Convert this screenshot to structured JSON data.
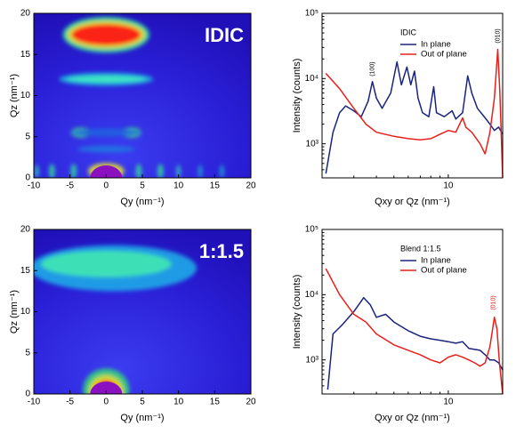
{
  "chart_data": [
    {
      "type": "heatmap",
      "label": "IDIC",
      "xlabel": "Qy (nm⁻¹)",
      "ylabel": "Qz (nm⁻¹)",
      "xlim": [
        -10,
        20
      ],
      "xticks": [
        -10,
        -5,
        0,
        5,
        10,
        15,
        20
      ],
      "ylim": [
        0,
        20
      ],
      "yticks": [
        0,
        5,
        10,
        15,
        20
      ]
    },
    {
      "type": "line",
      "xlabel": "Qxy or Qz (nm⁻¹)",
      "ylabel": "Intensity (counts)",
      "log_x": true,
      "log_y": true,
      "xlim": [
        2,
        20
      ],
      "xticks": [
        10
      ],
      "ylim": [
        300,
        100000
      ],
      "yticks": [
        {
          "value": 1000,
          "label": "10³"
        },
        {
          "value": 10000,
          "label": "10⁴"
        },
        {
          "value": 100000,
          "label": "10⁵"
        }
      ],
      "legend_title": "IDIC",
      "series": [
        {
          "name": "In plane",
          "color": "#1a237e",
          "x": [
            2.1,
            2.3,
            2.5,
            2.7,
            3.0,
            3.3,
            3.6,
            3.8,
            4.0,
            4.3,
            4.8,
            5.2,
            5.5,
            5.9,
            6.2,
            6.5,
            6.8,
            7.2,
            7.8,
            8.3,
            8.6,
            9.5,
            10.5,
            11,
            12,
            12.8,
            13.5,
            14.5,
            16,
            17,
            18,
            19,
            20
          ],
          "values": [
            350,
            1500,
            3000,
            3800,
            3200,
            2600,
            4500,
            9000,
            5000,
            3500,
            6000,
            18000,
            8000,
            15000,
            8000,
            13000,
            5000,
            3000,
            2600,
            7500,
            3000,
            2600,
            3200,
            2400,
            3000,
            11000,
            6000,
            3500,
            2500,
            2000,
            1600,
            1800,
            1400
          ]
        },
        {
          "name": "Out of plane",
          "color": "#e8201c",
          "x": [
            2.1,
            2.5,
            3,
            3.5,
            4,
            5,
            6,
            7,
            8,
            9,
            10,
            11,
            12,
            12.5,
            13.5,
            15,
            16,
            17,
            18,
            18.8,
            19.3,
            20
          ],
          "values": [
            12000,
            7000,
            3500,
            2000,
            1500,
            1300,
            1200,
            1150,
            1200,
            1400,
            1600,
            1500,
            2500,
            1800,
            1500,
            1000,
            700,
            1500,
            5000,
            28000,
            6000,
            300
          ]
        }
      ],
      "annotations": [
        {
          "text": "(100)",
          "x": 3.8,
          "y": 14000,
          "color": "#000000"
        },
        {
          "text": "(010)",
          "x": 18.8,
          "y": 45000,
          "color": "#000000"
        }
      ]
    },
    {
      "type": "heatmap",
      "label": "1:1.5",
      "xlabel": "Qy (nm⁻¹)",
      "ylabel": "Qz (nm⁻¹)",
      "xlim": [
        -10,
        20
      ],
      "xticks": [
        -10,
        -5,
        0,
        5,
        10,
        15,
        20
      ],
      "ylim": [
        0,
        20
      ],
      "yticks": [
        0,
        5,
        10,
        15,
        20
      ]
    },
    {
      "type": "line",
      "xlabel": "Qxy or Qz (nm⁻¹)",
      "ylabel": "Intensity (counts)",
      "log_x": true,
      "log_y": true,
      "xlim": [
        2,
        20
      ],
      "xticks": [
        10
      ],
      "ylim": [
        300,
        100000
      ],
      "yticks": [
        {
          "value": 1000,
          "label": "10³"
        },
        {
          "value": 10000,
          "label": "10⁴"
        },
        {
          "value": 100000,
          "label": "10⁵"
        }
      ],
      "legend_title": "Blend 1:1.5",
      "series": [
        {
          "name": "In plane",
          "color": "#1a237e",
          "x": [
            2.15,
            2.3,
            2.6,
            3.0,
            3.4,
            3.7,
            4.0,
            4.5,
            5.0,
            6,
            7,
            8,
            9,
            10,
            11,
            12,
            13,
            15,
            16,
            17,
            18,
            19,
            20
          ],
          "values": [
            350,
            2500,
            3500,
            5500,
            9000,
            7000,
            4500,
            5000,
            3800,
            2800,
            2300,
            2100,
            2000,
            1900,
            1800,
            1900,
            1500,
            1400,
            1200,
            1000,
            1000,
            900,
            700
          ]
        },
        {
          "name": "Out of plane",
          "color": "#e8201c",
          "x": [
            2.1,
            2.5,
            3,
            3.5,
            4,
            5,
            6,
            7,
            8,
            9,
            10,
            11,
            12,
            13,
            14,
            15,
            16,
            17,
            18,
            18.6,
            19.2,
            20
          ],
          "values": [
            25000,
            10000,
            5000,
            3800,
            2500,
            1700,
            1400,
            1200,
            1000,
            900,
            1100,
            1200,
            1100,
            1000,
            900,
            800,
            900,
            1600,
            4500,
            3000,
            900,
            300
          ]
        }
      ],
      "annotations": [
        {
          "text": "(010)",
          "x": 17.8,
          "y": 7500,
          "color": "#e8201c"
        }
      ]
    }
  ]
}
